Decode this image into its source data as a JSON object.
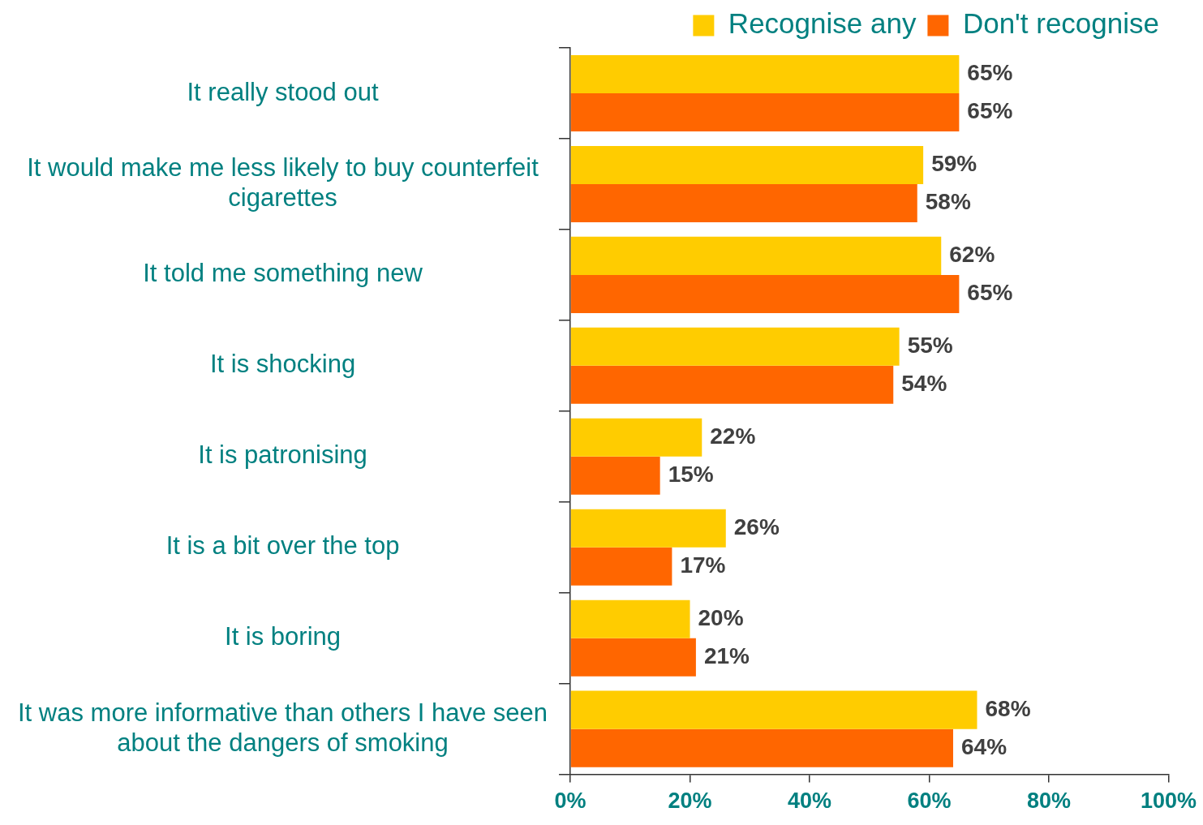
{
  "chart_data": {
    "type": "bar",
    "orientation": "horizontal",
    "categories": [
      "It really stood out",
      "It would make me less likely to buy counterfeit cigarettes",
      "It told me something new",
      "It is shocking",
      "It is patronising",
      "It is a bit over the top",
      "It is boring",
      "It was more informative than others I have seen about the dangers of smoking"
    ],
    "series": [
      {
        "name": "Recognise any",
        "color": "#ffcc00",
        "values": [
          65,
          59,
          62,
          55,
          22,
          26,
          20,
          68
        ],
        "value_labels": [
          "65%",
          "59%",
          "62%",
          "55%",
          "22%",
          "26%",
          "20%",
          "68%"
        ]
      },
      {
        "name": "Don't recognise",
        "color": "#ff6600",
        "values": [
          65,
          58,
          65,
          54,
          15,
          17,
          21,
          64
        ],
        "value_labels": [
          "65%",
          "58%",
          "65%",
          "54%",
          "15%",
          "17%",
          "21%",
          "64%"
        ]
      }
    ],
    "xlim": [
      0,
      100
    ],
    "xticks": [
      {
        "value": 0,
        "label": "0%"
      },
      {
        "value": 20,
        "label": "20%"
      },
      {
        "value": 40,
        "label": "40%"
      },
      {
        "value": 60,
        "label": "60%"
      },
      {
        "value": 80,
        "label": "80%"
      },
      {
        "value": 100,
        "label": "100%"
      }
    ],
    "grid": false,
    "legend": "top right"
  }
}
